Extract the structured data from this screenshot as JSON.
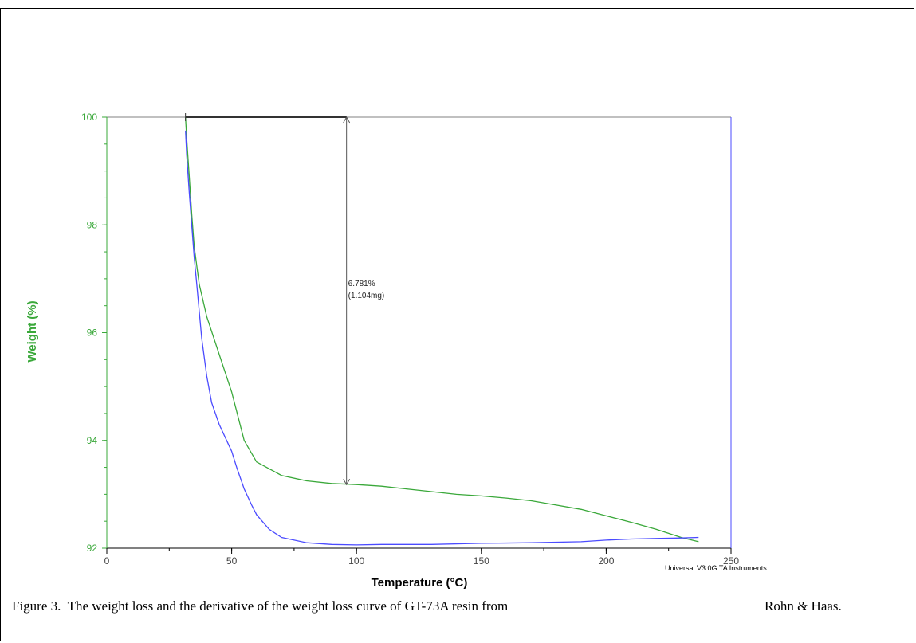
{
  "chart_data": {
    "type": "line",
    "title": "",
    "xlabel": "Temperature (°C)",
    "ylabel": "Weight (%)",
    "xlim": [
      0,
      250
    ],
    "ylim": [
      92,
      100
    ],
    "x_ticks": [
      0,
      50,
      100,
      150,
      200,
      250
    ],
    "y_ticks": [
      92,
      94,
      96,
      98,
      100
    ],
    "grid": false,
    "legend": "none",
    "series": [
      {
        "color": "#3aa83a",
        "x": [
          31.5,
          32,
          33,
          34,
          35,
          37,
          40,
          45,
          50,
          55,
          60,
          70,
          80,
          90,
          100,
          110,
          120,
          130,
          140,
          150,
          160,
          170,
          180,
          190,
          200,
          210,
          220,
          230,
          237
        ],
        "y": [
          100.0,
          99.6,
          98.9,
          98.2,
          97.6,
          96.9,
          96.3,
          95.6,
          94.9,
          94.0,
          93.6,
          93.35,
          93.25,
          93.2,
          93.18,
          93.15,
          93.1,
          93.05,
          93.0,
          92.97,
          92.93,
          92.88,
          92.8,
          92.72,
          92.6,
          92.48,
          92.35,
          92.2,
          92.12
        ]
      },
      {
        "color": "#4b4bff",
        "x": [
          31.5,
          32,
          33,
          34,
          35,
          36,
          37,
          38,
          40,
          42,
          45,
          48,
          50,
          52,
          55,
          58,
          60,
          65,
          70,
          80,
          90,
          100,
          110,
          130,
          150,
          170,
          190,
          200,
          210,
          220,
          230,
          237
        ],
        "y": [
          99.75,
          99.3,
          98.6,
          98.0,
          97.4,
          96.9,
          96.4,
          95.9,
          95.2,
          94.7,
          94.3,
          94.0,
          93.8,
          93.5,
          93.1,
          92.8,
          92.62,
          92.35,
          92.2,
          92.1,
          92.07,
          92.06,
          92.07,
          92.07,
          92.09,
          92.1,
          92.12,
          92.15,
          92.17,
          92.18,
          92.19,
          92.2
        ]
      }
    ],
    "annotations": {
      "step": {
        "x": 96,
        "y_top": 100,
        "y_bottom": 93.18,
        "line1": "6.781%",
        "line2": "(1.104mg)"
      }
    },
    "footer_right": "Universal V3.0G TA Instruments"
  },
  "axis_colors": {
    "left": "#3aa83a",
    "right": "#4b4bff",
    "frame": "#808080",
    "annotation": "#555555"
  },
  "caption": {
    "text": "Figure 3.  The weight loss and the derivative of the weight loss curve of GT-73A resin from",
    "source": "Rohn & Haas."
  }
}
